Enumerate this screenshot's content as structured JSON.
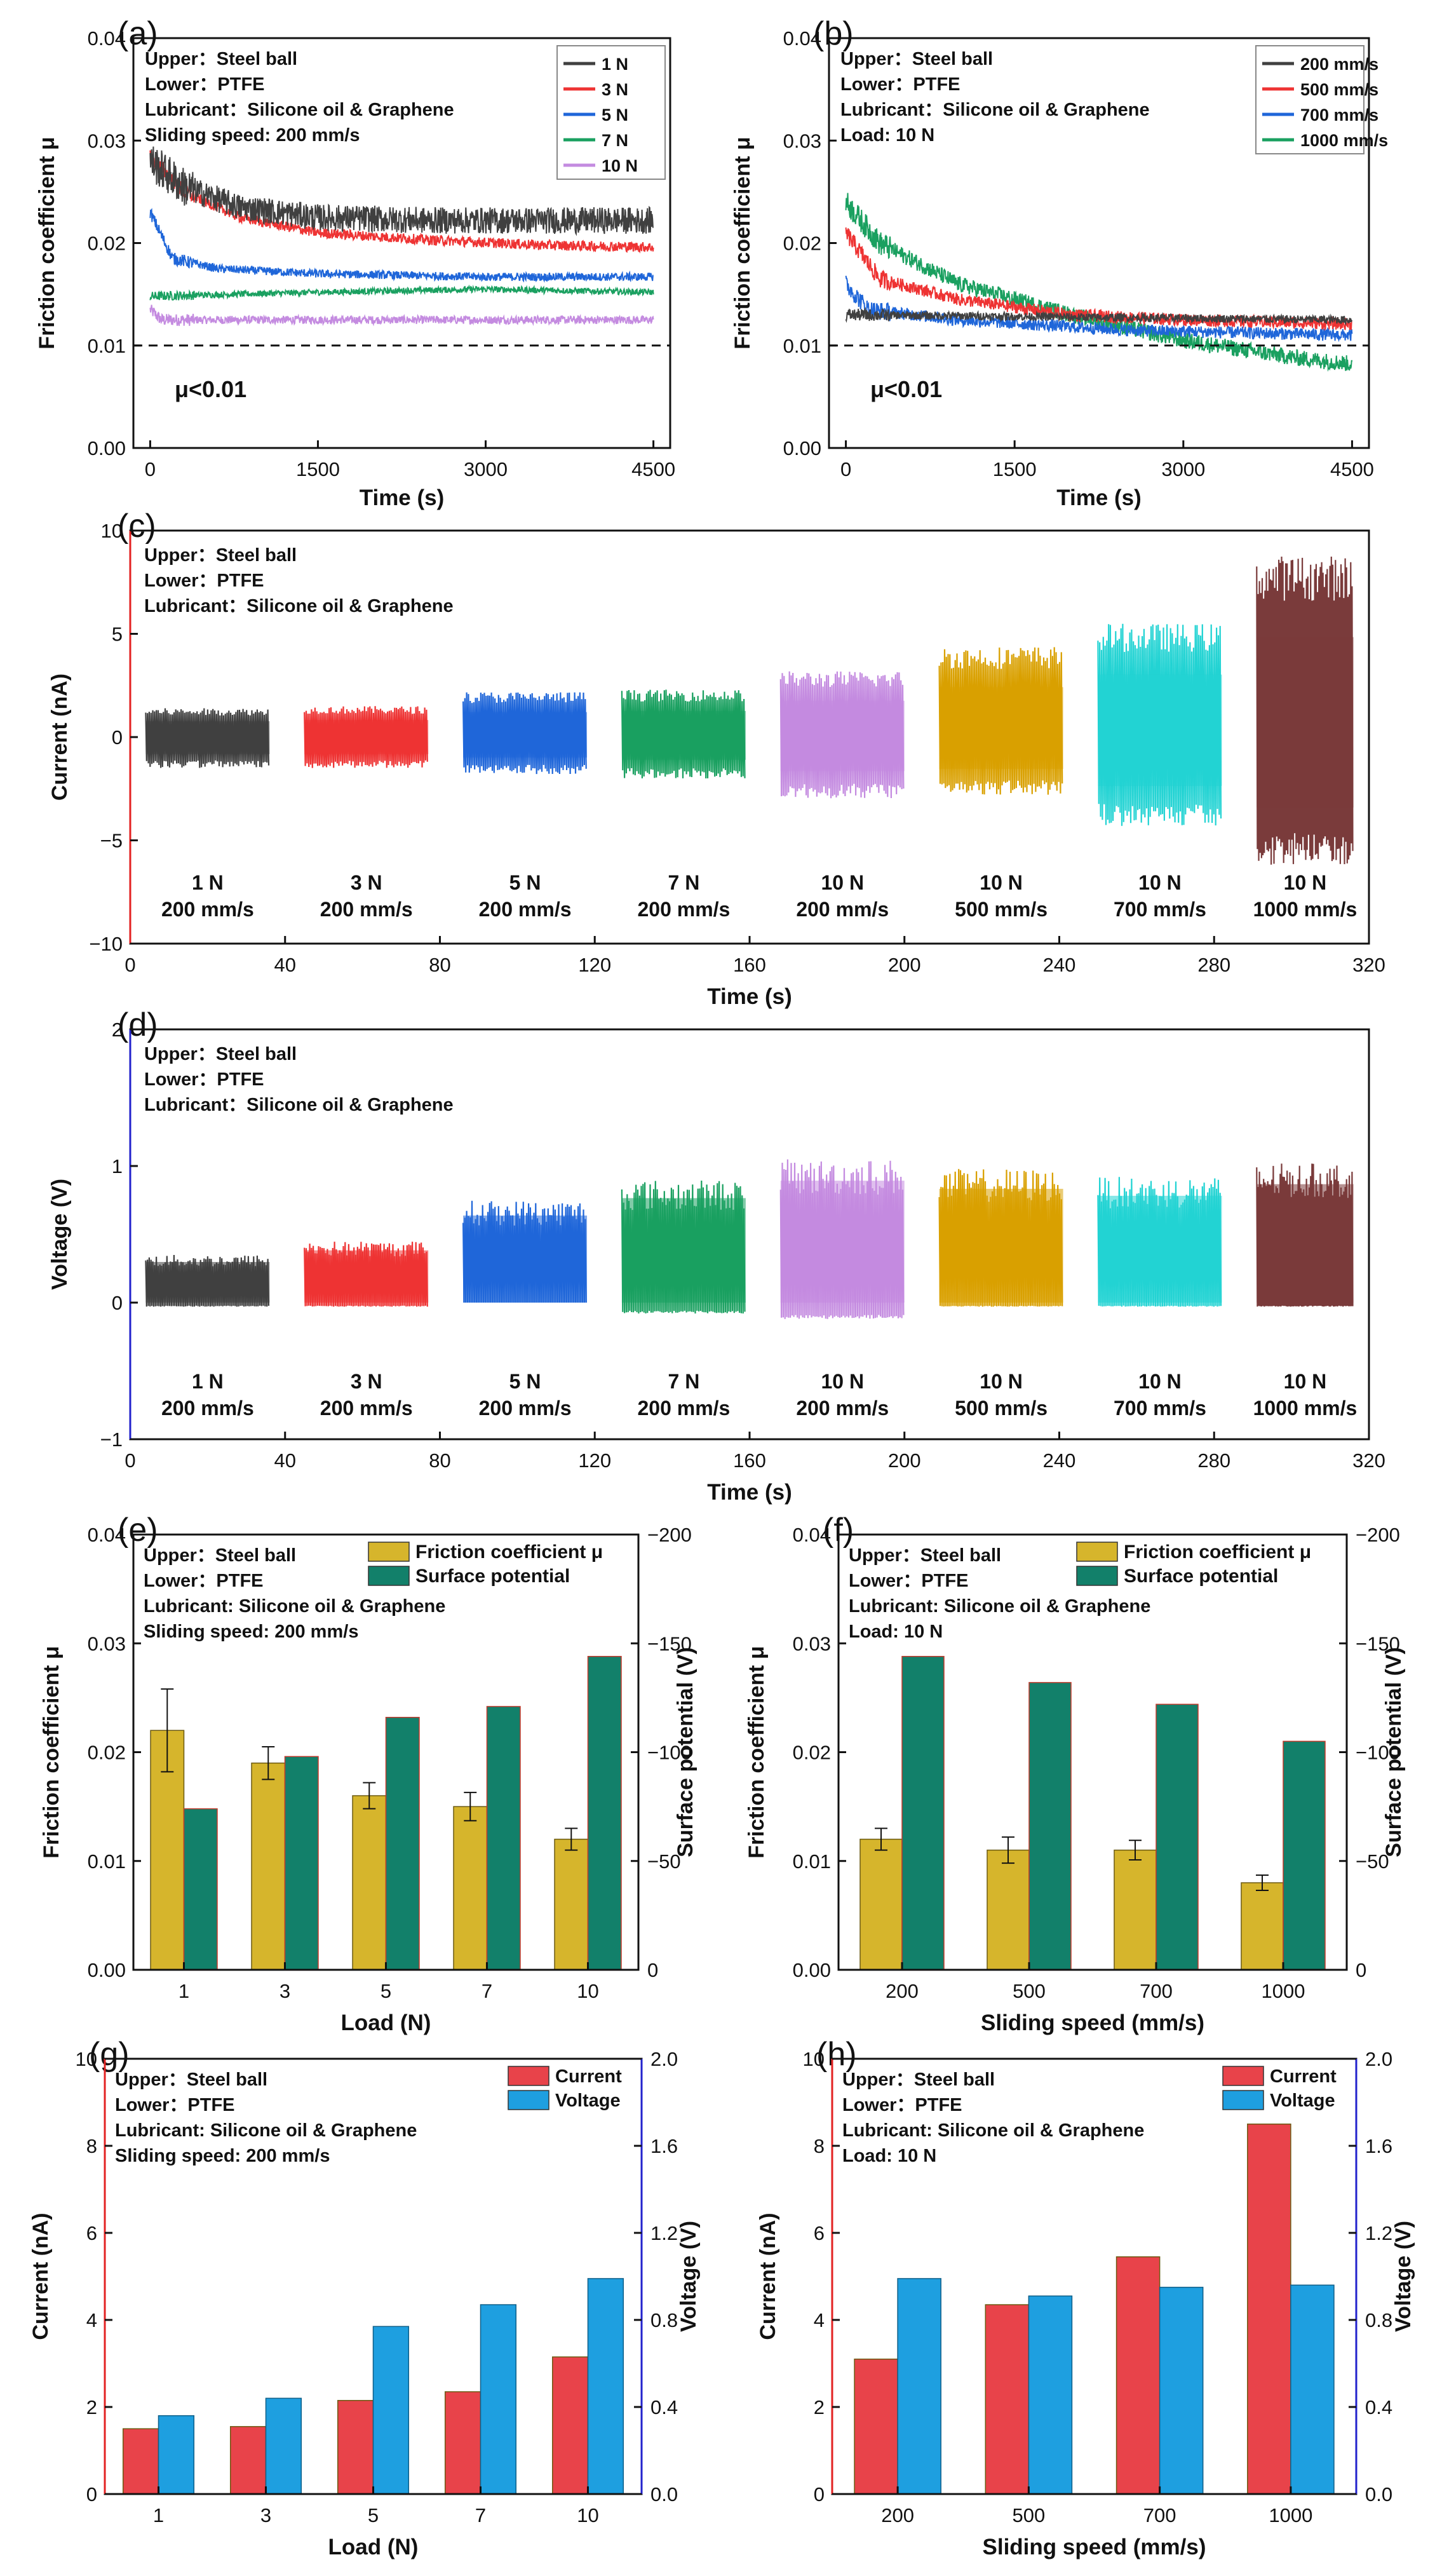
{
  "chart_data": [
    {
      "id": "a",
      "panel_label": "(a)",
      "type": "line",
      "xlabel": "Time (s)",
      "ylabel": "Friction coefficient μ",
      "xlim": [
        -150,
        4650
      ],
      "ylim": [
        0.0,
        0.04
      ],
      "xticks": [
        0,
        1500,
        3000,
        4500
      ],
      "yticks": [
        "0.00",
        "0.01",
        "0.02",
        "0.03",
        "0.04"
      ],
      "info_lines": [
        "Upper：Steel ball",
        "Lower：PTFE",
        "Lubricant：Silicone oil & Graphene",
        "Sliding speed: 200 mm/s"
      ],
      "annotation": "μ<0.01",
      "reference_line": 0.01,
      "series": [
        {
          "name": "1 N",
          "color": "#404040",
          "points": [
            [
              0,
              0.028
            ],
            [
              300,
              0.0255
            ],
            [
              800,
              0.0235
            ],
            [
              1500,
              0.0225
            ],
            [
              2500,
              0.0222
            ],
            [
              3500,
              0.0222
            ],
            [
              4500,
              0.0222
            ]
          ],
          "noise": 0.0013
        },
        {
          "name": "3 N",
          "color": "#ee3333",
          "points": [
            [
              0,
              0.0285
            ],
            [
              300,
              0.025
            ],
            [
              800,
              0.0225
            ],
            [
              1500,
              0.021
            ],
            [
              2500,
              0.0203
            ],
            [
              3500,
              0.0198
            ],
            [
              4500,
              0.0196
            ]
          ],
          "noise": 0.0005
        },
        {
          "name": "5 N",
          "color": "#1f66d9",
          "points": [
            [
              0,
              0.023
            ],
            [
              200,
              0.0185
            ],
            [
              600,
              0.0175
            ],
            [
              1500,
              0.017
            ],
            [
              3000,
              0.0167
            ],
            [
              4500,
              0.0167
            ]
          ],
          "noise": 0.0004
        },
        {
          "name": "7 N",
          "color": "#1aa060",
          "points": [
            [
              0,
              0.0148
            ],
            [
              1500,
              0.0152
            ],
            [
              3000,
              0.0155
            ],
            [
              4500,
              0.0152
            ]
          ],
          "noise": 0.0003
        },
        {
          "name": "10 N",
          "color": "#c48be0",
          "points": [
            [
              0,
              0.0135
            ],
            [
              100,
              0.0125
            ],
            [
              4500,
              0.0125
            ]
          ],
          "noise": 0.0004
        }
      ]
    },
    {
      "id": "b",
      "panel_label": "(b)",
      "type": "line",
      "xlabel": "Time (s)",
      "ylabel": "Friction coefficient μ",
      "xlim": [
        -150,
        4650
      ],
      "ylim": [
        0.0,
        0.04
      ],
      "xticks": [
        0,
        1500,
        3000,
        4500
      ],
      "yticks": [
        "0.00",
        "0.01",
        "0.02",
        "0.03",
        "0.04"
      ],
      "info_lines": [
        "Upper：Steel ball",
        "Lower：PTFE",
        "Lubricant：Silicone oil & Graphene",
        "Load: 10 N"
      ],
      "annotation": "μ<0.01",
      "reference_line": 0.01,
      "series": [
        {
          "name": "200 mm/s",
          "color": "#404040",
          "points": [
            [
              0,
              0.013
            ],
            [
              4500,
              0.0125
            ]
          ],
          "noise": 0.0004
        },
        {
          "name": "500 mm/s",
          "color": "#ee3333",
          "points": [
            [
              0,
              0.021
            ],
            [
              300,
              0.0165
            ],
            [
              1000,
              0.0145
            ],
            [
              2000,
              0.013
            ],
            [
              3000,
              0.0125
            ],
            [
              4500,
              0.0121
            ]
          ],
          "noise": 0.0006
        },
        {
          "name": "700 mm/s",
          "color": "#1f66d9",
          "points": [
            [
              0,
              0.016
            ],
            [
              200,
              0.0135
            ],
            [
              1000,
              0.0125
            ],
            [
              2500,
              0.0115
            ],
            [
              4500,
              0.011
            ]
          ],
          "noise": 0.0006
        },
        {
          "name": "1000 mm/s",
          "color": "#1aa060",
          "points": [
            [
              0,
              0.024
            ],
            [
              300,
              0.02
            ],
            [
              1000,
              0.016
            ],
            [
              2000,
              0.013
            ],
            [
              3000,
              0.0105
            ],
            [
              4000,
              0.0088
            ],
            [
              4500,
              0.0082
            ]
          ],
          "noise": 0.0008
        }
      ]
    },
    {
      "id": "c",
      "panel_label": "(c)",
      "type": "line",
      "xlabel": "Time (s)",
      "ylabel": "Current (nA)",
      "xlim": [
        0,
        320
      ],
      "ylim": [
        -10,
        10
      ],
      "xticks": [
        0,
        40,
        80,
        120,
        160,
        200,
        240,
        280,
        320
      ],
      "yticks": [
        "−10",
        "−5",
        "0",
        "5",
        "10"
      ],
      "info_lines": [
        "Upper：Steel ball",
        "Lower：PTFE",
        "Lubricant：Silicone oil & Graphene"
      ],
      "groups": [
        {
          "load": "1 N",
          "speed": "200 mm/s",
          "color": "#404040",
          "start": 4,
          "end": 36,
          "max": 1.4,
          "min": -1.5
        },
        {
          "load": "3 N",
          "speed": "200 mm/s",
          "color": "#ee3333",
          "start": 45,
          "end": 77,
          "max": 1.5,
          "min": -1.5
        },
        {
          "load": "5 N",
          "speed": "200 mm/s",
          "color": "#1f66d9",
          "start": 86,
          "end": 118,
          "max": 2.2,
          "min": -1.8
        },
        {
          "load": "7 N",
          "speed": "200 mm/s",
          "color": "#1aa060",
          "start": 127,
          "end": 159,
          "max": 2.3,
          "min": -2.0
        },
        {
          "load": "10 N",
          "speed": "200 mm/s",
          "color": "#c48be0",
          "start": 168,
          "end": 200,
          "max": 3.2,
          "min": -3.0
        },
        {
          "load": "10 N",
          "speed": "500 mm/s",
          "color": "#d9a000",
          "start": 209,
          "end": 241,
          "max": 4.4,
          "min": -2.8
        },
        {
          "load": "10 N",
          "speed": "700 mm/s",
          "color": "#22d3d3",
          "start": 250,
          "end": 282,
          "max": 5.5,
          "min": -4.3
        },
        {
          "load": "10 N",
          "speed": "1000 mm/s",
          "color": "#7a3b3b",
          "start": 291,
          "end": 323,
          "max": 8.8,
          "min": -6.2
        }
      ]
    },
    {
      "id": "d",
      "panel_label": "(d)",
      "type": "line",
      "xlabel": "Time (s)",
      "ylabel": "Voltage (V)",
      "xlim": [
        0,
        320
      ],
      "ylim": [
        -1,
        2
      ],
      "xticks": [
        0,
        40,
        80,
        120,
        160,
        200,
        240,
        280,
        320
      ],
      "yticks": [
        "−1",
        "0",
        "1",
        "2"
      ],
      "info_lines": [
        "Upper：Steel ball",
        "Lower：PTFE",
        "Lubricant：Silicone oil & Graphene"
      ],
      "groups": [
        {
          "load": "1 N",
          "speed": "200 mm/s",
          "color": "#404040",
          "start": 4,
          "end": 36,
          "max": 0.35,
          "min": -0.03
        },
        {
          "load": "3 N",
          "speed": "200 mm/s",
          "color": "#ee3333",
          "start": 45,
          "end": 77,
          "max": 0.45,
          "min": -0.03
        },
        {
          "load": "5 N",
          "speed": "200 mm/s",
          "color": "#1f66d9",
          "start": 86,
          "end": 118,
          "max": 0.75,
          "min": 0.0
        },
        {
          "load": "7 N",
          "speed": "200 mm/s",
          "color": "#1aa060",
          "start": 127,
          "end": 159,
          "max": 0.9,
          "min": -0.08
        },
        {
          "load": "10 N",
          "speed": "200 mm/s",
          "color": "#c48be0",
          "start": 168,
          "end": 200,
          "max": 1.05,
          "min": -0.12
        },
        {
          "load": "10 N",
          "speed": "500 mm/s",
          "color": "#d9a000",
          "start": 209,
          "end": 241,
          "max": 0.98,
          "min": -0.03
        },
        {
          "load": "10 N",
          "speed": "700 mm/s",
          "color": "#22d3d3",
          "start": 250,
          "end": 282,
          "max": 0.92,
          "min": -0.03
        },
        {
          "load": "10 N",
          "speed": "1000 mm/s",
          "color": "#7a3b3b",
          "start": 291,
          "end": 323,
          "max": 1.02,
          "min": -0.03
        }
      ]
    },
    {
      "id": "e",
      "panel_label": "(e)",
      "type": "bar",
      "xlabel": "Load (N)",
      "ylabel_left": "Friction coefficient μ",
      "ylabel_right": "Surface potential (V)",
      "categories": [
        "1",
        "3",
        "5",
        "7",
        "10"
      ],
      "ylim_left": [
        0,
        0.04
      ],
      "yticks_left": [
        "0.00",
        "0.01",
        "0.02",
        "0.03",
        "0.04"
      ],
      "ylim_right": [
        0,
        -200
      ],
      "yticks_right": [
        "0",
        "−50",
        "−100",
        "−150",
        "−200"
      ],
      "info_lines": [
        "Upper：Steel ball",
        "Lower：PTFE",
        "Lubricant: Silicone oil & Graphene",
        "Sliding speed: 200 mm/s"
      ],
      "series": [
        {
          "name": "Friction coefficient μ",
          "axis": "left",
          "color": "#d6b52c",
          "values": [
            0.022,
            0.019,
            0.016,
            0.015,
            0.012
          ],
          "errors": [
            0.0038,
            0.0015,
            0.0012,
            0.0013,
            0.001
          ]
        },
        {
          "name": "Surface potential",
          "axis": "right",
          "color": "#12806a",
          "values": [
            -74,
            -98,
            -116,
            -121,
            -144
          ]
        }
      ]
    },
    {
      "id": "f",
      "panel_label": "(f)",
      "type": "bar",
      "xlabel": "Sliding speed (mm/s)",
      "ylabel_left": "Friction coefficient μ",
      "ylabel_right": "Surface potential (V)",
      "categories": [
        "200",
        "500",
        "700",
        "1000"
      ],
      "ylim_left": [
        0,
        0.04
      ],
      "yticks_left": [
        "0.00",
        "0.01",
        "0.02",
        "0.03",
        "0.04"
      ],
      "ylim_right": [
        0,
        -200
      ],
      "yticks_right": [
        "0",
        "−50",
        "−100",
        "−150",
        "−200"
      ],
      "info_lines": [
        "Upper：Steel ball",
        "Lower：PTFE",
        "Lubricant: Silicone oil & Graphene",
        "Load: 10 N"
      ],
      "series": [
        {
          "name": "Friction coefficient μ",
          "axis": "left",
          "color": "#d6b52c",
          "values": [
            0.012,
            0.011,
            0.011,
            0.008
          ],
          "errors": [
            0.001,
            0.0012,
            0.0009,
            0.0007
          ]
        },
        {
          "name": "Surface potential",
          "axis": "right",
          "color": "#12806a",
          "values": [
            -144,
            -132,
            -122,
            -105
          ]
        }
      ]
    },
    {
      "id": "g",
      "panel_label": "(g)",
      "type": "bar",
      "xlabel": "Load (N)",
      "ylabel_left": "Current (nA)",
      "ylabel_right": "Voltage (V)",
      "categories": [
        "1",
        "3",
        "5",
        "7",
        "10"
      ],
      "ylim_left": [
        0,
        10
      ],
      "yticks_left": [
        "0",
        "2",
        "4",
        "6",
        "8",
        "10"
      ],
      "ylim_right": [
        0,
        2
      ],
      "yticks_right": [
        "0.0",
        "0.4",
        "0.8",
        "1.2",
        "1.6",
        "2.0"
      ],
      "info_lines": [
        "Upper：Steel ball",
        "Lower：PTFE",
        "Lubricant: Silicone oil & Graphene",
        "Sliding speed: 200 mm/s"
      ],
      "series": [
        {
          "name": "Current",
          "axis": "left",
          "color": "#e8434a",
          "values": [
            1.5,
            1.55,
            2.15,
            2.35,
            3.15
          ]
        },
        {
          "name": "Voltage",
          "axis": "right",
          "color": "#1e9fe0",
          "values": [
            0.36,
            0.44,
            0.77,
            0.87,
            0.99
          ]
        }
      ]
    },
    {
      "id": "h",
      "panel_label": "(h)",
      "type": "bar",
      "xlabel": "Sliding speed (mm/s)",
      "ylabel_left": "Current (nA)",
      "ylabel_right": "Voltage (V)",
      "categories": [
        "200",
        "500",
        "700",
        "1000"
      ],
      "ylim_left": [
        0,
        10
      ],
      "yticks_left": [
        "0",
        "2",
        "4",
        "6",
        "8",
        "10"
      ],
      "ylim_right": [
        0,
        2
      ],
      "yticks_right": [
        "0.0",
        "0.4",
        "0.8",
        "1.2",
        "1.6",
        "2.0"
      ],
      "info_lines": [
        "Upper：Steel ball",
        "Lower：PTFE",
        "Lubricant: Silicone oil & Graphene",
        "Load: 10 N"
      ],
      "series": [
        {
          "name": "Current",
          "axis": "left",
          "color": "#e8434a",
          "values": [
            3.1,
            4.35,
            5.45,
            8.5
          ]
        },
        {
          "name": "Voltage",
          "axis": "right",
          "color": "#1e9fe0",
          "values": [
            0.99,
            0.91,
            0.95,
            0.96
          ]
        }
      ]
    }
  ]
}
